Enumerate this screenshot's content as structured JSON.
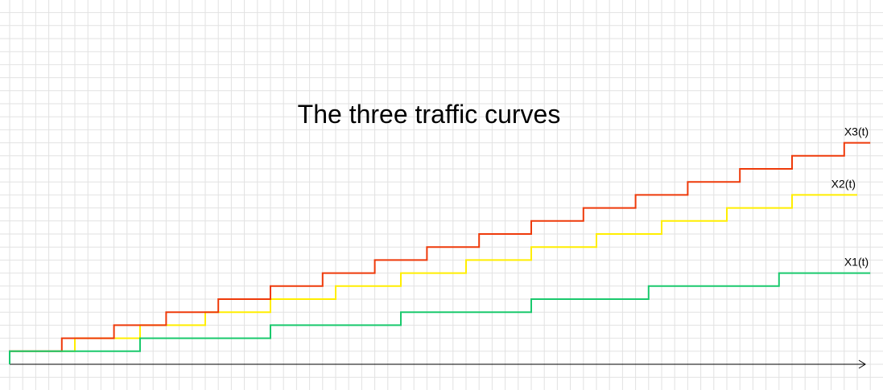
{
  "chart_data": {
    "type": "line",
    "step": true,
    "title": "The three traffic curves",
    "xlabel": "",
    "ylabel": "",
    "grid": true,
    "axis_arrow": true,
    "series": [
      {
        "name": "X3(t)",
        "color": "#ee3a0a",
        "x": [
          0,
          4,
          8,
          12,
          16,
          20,
          24,
          28,
          32,
          36,
          40,
          44,
          48,
          52,
          56,
          60,
          64
        ],
        "y": [
          1,
          2,
          3,
          4,
          5,
          6,
          7,
          8,
          9,
          10,
          11,
          12,
          13,
          14,
          15,
          16,
          17
        ],
        "x_end": 66
      },
      {
        "name": "X2(t)",
        "color": "#ffee00",
        "x": [
          0,
          5,
          10,
          15,
          20,
          25,
          30,
          35,
          40,
          45,
          50,
          55,
          60
        ],
        "y": [
          1,
          2,
          3,
          4,
          5,
          6,
          7,
          8,
          9,
          10,
          11,
          12,
          13
        ],
        "x_end": 65
      },
      {
        "name": "X1(t)",
        "color": "#1ac96d",
        "x": [
          0,
          10,
          20,
          30,
          40,
          49,
          59
        ],
        "y": [
          1,
          2,
          3,
          4,
          5,
          6,
          7
        ],
        "x_end": 66
      }
    ]
  }
}
